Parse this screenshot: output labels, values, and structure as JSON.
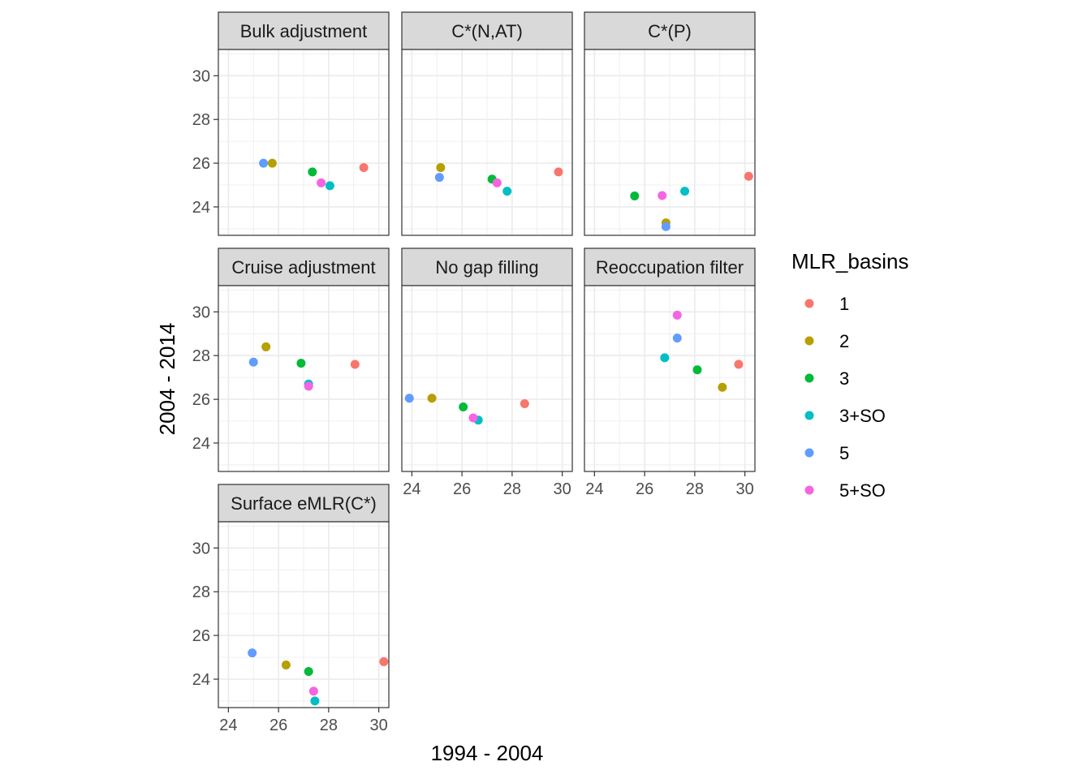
{
  "chart_data": {
    "type": "scatter",
    "facet_layout": "wrap-3-columns",
    "xlabel": "1994 - 2004",
    "ylabel": "2004 - 2014",
    "xlim": [
      23.6,
      30.4
    ],
    "ylim": [
      22.7,
      31.2
    ],
    "x_ticks": [
      24,
      26,
      28,
      30
    ],
    "y_ticks": [
      24,
      26,
      28,
      30
    ],
    "grid": true,
    "legend": {
      "title": "MLR_basins",
      "position": "right",
      "entries": [
        {
          "label": "1",
          "color": "#F8766D"
        },
        {
          "label": "2",
          "color": "#B79F00"
        },
        {
          "label": "3",
          "color": "#00BA38"
        },
        {
          "label": "3+SO",
          "color": "#00BFC4"
        },
        {
          "label": "5",
          "color": "#619CFF"
        },
        {
          "label": "5+SO",
          "color": "#F564E3"
        }
      ]
    },
    "panels": [
      {
        "title": "Bulk adjustment",
        "points": [
          {
            "group": "1",
            "x": 29.4,
            "y": 25.8
          },
          {
            "group": "2",
            "x": 25.75,
            "y": 26.0
          },
          {
            "group": "3",
            "x": 27.35,
            "y": 25.6
          },
          {
            "group": "3+SO",
            "x": 28.05,
            "y": 24.97
          },
          {
            "group": "5",
            "x": 25.4,
            "y": 26.0
          },
          {
            "group": "5+SO",
            "x": 27.7,
            "y": 25.1
          }
        ]
      },
      {
        "title": "C*(N,AT)",
        "points": [
          {
            "group": "1",
            "x": 29.85,
            "y": 25.6
          },
          {
            "group": "2",
            "x": 25.15,
            "y": 25.8
          },
          {
            "group": "3",
            "x": 27.2,
            "y": 25.27
          },
          {
            "group": "3+SO",
            "x": 27.8,
            "y": 24.72
          },
          {
            "group": "5",
            "x": 25.1,
            "y": 25.35
          },
          {
            "group": "5+SO",
            "x": 27.4,
            "y": 25.1
          }
        ]
      },
      {
        "title": "C*(P)",
        "points": [
          {
            "group": "1",
            "x": 30.15,
            "y": 25.4
          },
          {
            "group": "2",
            "x": 26.85,
            "y": 23.27
          },
          {
            "group": "3",
            "x": 25.6,
            "y": 24.5
          },
          {
            "group": "3+SO",
            "x": 27.6,
            "y": 24.72
          },
          {
            "group": "5",
            "x": 26.85,
            "y": 23.1
          },
          {
            "group": "5+SO",
            "x": 26.7,
            "y": 24.52
          }
        ]
      },
      {
        "title": "Cruise adjustment",
        "points": [
          {
            "group": "1",
            "x": 29.05,
            "y": 27.6
          },
          {
            "group": "2",
            "x": 25.5,
            "y": 28.4
          },
          {
            "group": "3",
            "x": 26.9,
            "y": 27.65
          },
          {
            "group": "3+SO",
            "x": 27.2,
            "y": 26.7
          },
          {
            "group": "5",
            "x": 25.0,
            "y": 27.7
          },
          {
            "group": "5+SO",
            "x": 27.2,
            "y": 26.6
          }
        ]
      },
      {
        "title": "No gap filling",
        "points": [
          {
            "group": "1",
            "x": 28.5,
            "y": 25.8
          },
          {
            "group": "2",
            "x": 24.8,
            "y": 26.05
          },
          {
            "group": "3",
            "x": 26.05,
            "y": 25.65
          },
          {
            "group": "3+SO",
            "x": 26.65,
            "y": 25.05
          },
          {
            "group": "5",
            "x": 23.9,
            "y": 26.05
          },
          {
            "group": "5+SO",
            "x": 26.45,
            "y": 25.15
          }
        ]
      },
      {
        "title": "Reoccupation filter",
        "points": [
          {
            "group": "1",
            "x": 29.75,
            "y": 27.6
          },
          {
            "group": "2",
            "x": 29.1,
            "y": 26.55
          },
          {
            "group": "3",
            "x": 28.1,
            "y": 27.35
          },
          {
            "group": "3+SO",
            "x": 26.8,
            "y": 27.9
          },
          {
            "group": "5",
            "x": 27.3,
            "y": 28.8
          },
          {
            "group": "5+SO",
            "x": 27.3,
            "y": 29.85
          }
        ]
      },
      {
        "title": "Surface eMLR(C*)",
        "points": [
          {
            "group": "1",
            "x": 30.2,
            "y": 24.8
          },
          {
            "group": "2",
            "x": 26.3,
            "y": 24.65
          },
          {
            "group": "3",
            "x": 27.2,
            "y": 24.35
          },
          {
            "group": "3+SO",
            "x": 27.45,
            "y": 23.0
          },
          {
            "group": "5",
            "x": 24.95,
            "y": 25.2
          },
          {
            "group": "5+SO",
            "x": 27.4,
            "y": 23.45
          }
        ]
      }
    ]
  }
}
